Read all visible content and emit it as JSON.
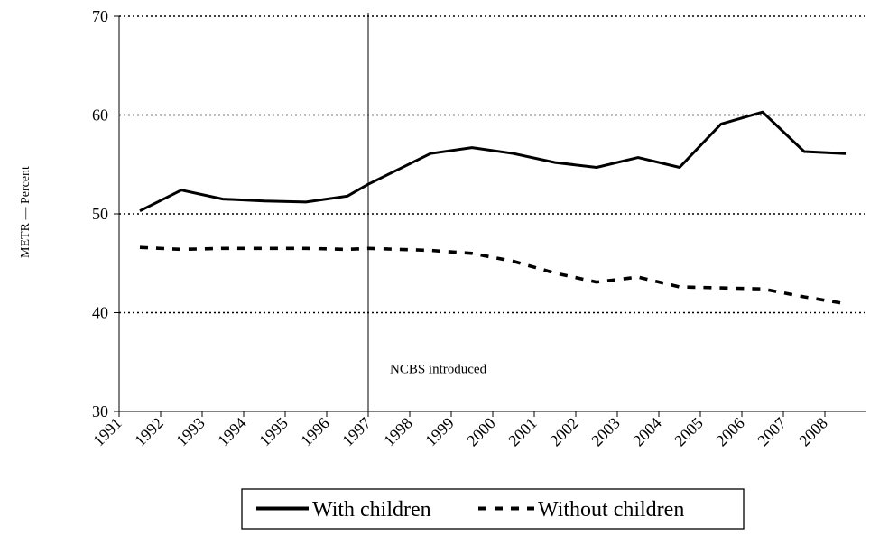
{
  "chart_data": {
    "type": "line",
    "title": "",
    "xlabel": "",
    "ylabel": "METR — Percent",
    "ylim": [
      30,
      70
    ],
    "y_ticks": [
      30,
      40,
      50,
      60,
      70
    ],
    "categories": [
      "1991",
      "1992",
      "1993",
      "1994",
      "1995",
      "1996",
      "1997",
      "1998",
      "1999",
      "2000",
      "2001",
      "2002",
      "2003",
      "2004",
      "2005",
      "2006",
      "2007",
      "2008"
    ],
    "grid": "horizontal dotted",
    "legend_position": "bottom",
    "series": [
      {
        "name": "With children",
        "style": "solid",
        "color": "#000000",
        "points": [
          {
            "x": 1991.5,
            "y": 50.3
          },
          {
            "x": 1992.5,
            "y": 52.4
          },
          {
            "x": 1993.5,
            "y": 51.5
          },
          {
            "x": 1994.5,
            "y": 51.3
          },
          {
            "x": 1995.5,
            "y": 51.2
          },
          {
            "x": 1996.5,
            "y": 51.8
          },
          {
            "x": 1997.0,
            "y": 53.0
          },
          {
            "x": 1998.5,
            "y": 56.1
          },
          {
            "x": 1999.5,
            "y": 56.7
          },
          {
            "x": 2000.5,
            "y": 56.1
          },
          {
            "x": 2001.5,
            "y": 55.2
          },
          {
            "x": 2002.5,
            "y": 54.7
          },
          {
            "x": 2003.5,
            "y": 55.7
          },
          {
            "x": 2004.5,
            "y": 54.7
          },
          {
            "x": 2005.5,
            "y": 59.1
          },
          {
            "x": 2006.5,
            "y": 60.3
          },
          {
            "x": 2007.5,
            "y": 56.3
          },
          {
            "x": 2008.5,
            "y": 56.1
          }
        ]
      },
      {
        "name": "Without children",
        "style": "dashed",
        "color": "#000000",
        "points": [
          {
            "x": 1991.5,
            "y": 46.6
          },
          {
            "x": 1992.5,
            "y": 46.4
          },
          {
            "x": 1993.5,
            "y": 46.5
          },
          {
            "x": 1994.5,
            "y": 46.5
          },
          {
            "x": 1995.5,
            "y": 46.5
          },
          {
            "x": 1996.5,
            "y": 46.4
          },
          {
            "x": 1997.0,
            "y": 46.5
          },
          {
            "x": 1998.5,
            "y": 46.3
          },
          {
            "x": 1999.5,
            "y": 46.0
          },
          {
            "x": 2000.5,
            "y": 45.2
          },
          {
            "x": 2001.5,
            "y": 44.0
          },
          {
            "x": 2002.5,
            "y": 43.1
          },
          {
            "x": 2003.5,
            "y": 43.6
          },
          {
            "x": 2004.5,
            "y": 42.6
          },
          {
            "x": 2005.5,
            "y": 42.5
          },
          {
            "x": 2006.5,
            "y": 42.4
          },
          {
            "x": 2007.5,
            "y": 41.6
          },
          {
            "x": 2008.5,
            "y": 40.9
          }
        ]
      }
    ],
    "annotations": [
      {
        "type": "vline",
        "x": 1997.0,
        "text": "NCBS introduced",
        "text_y": 33.9
      }
    ]
  }
}
